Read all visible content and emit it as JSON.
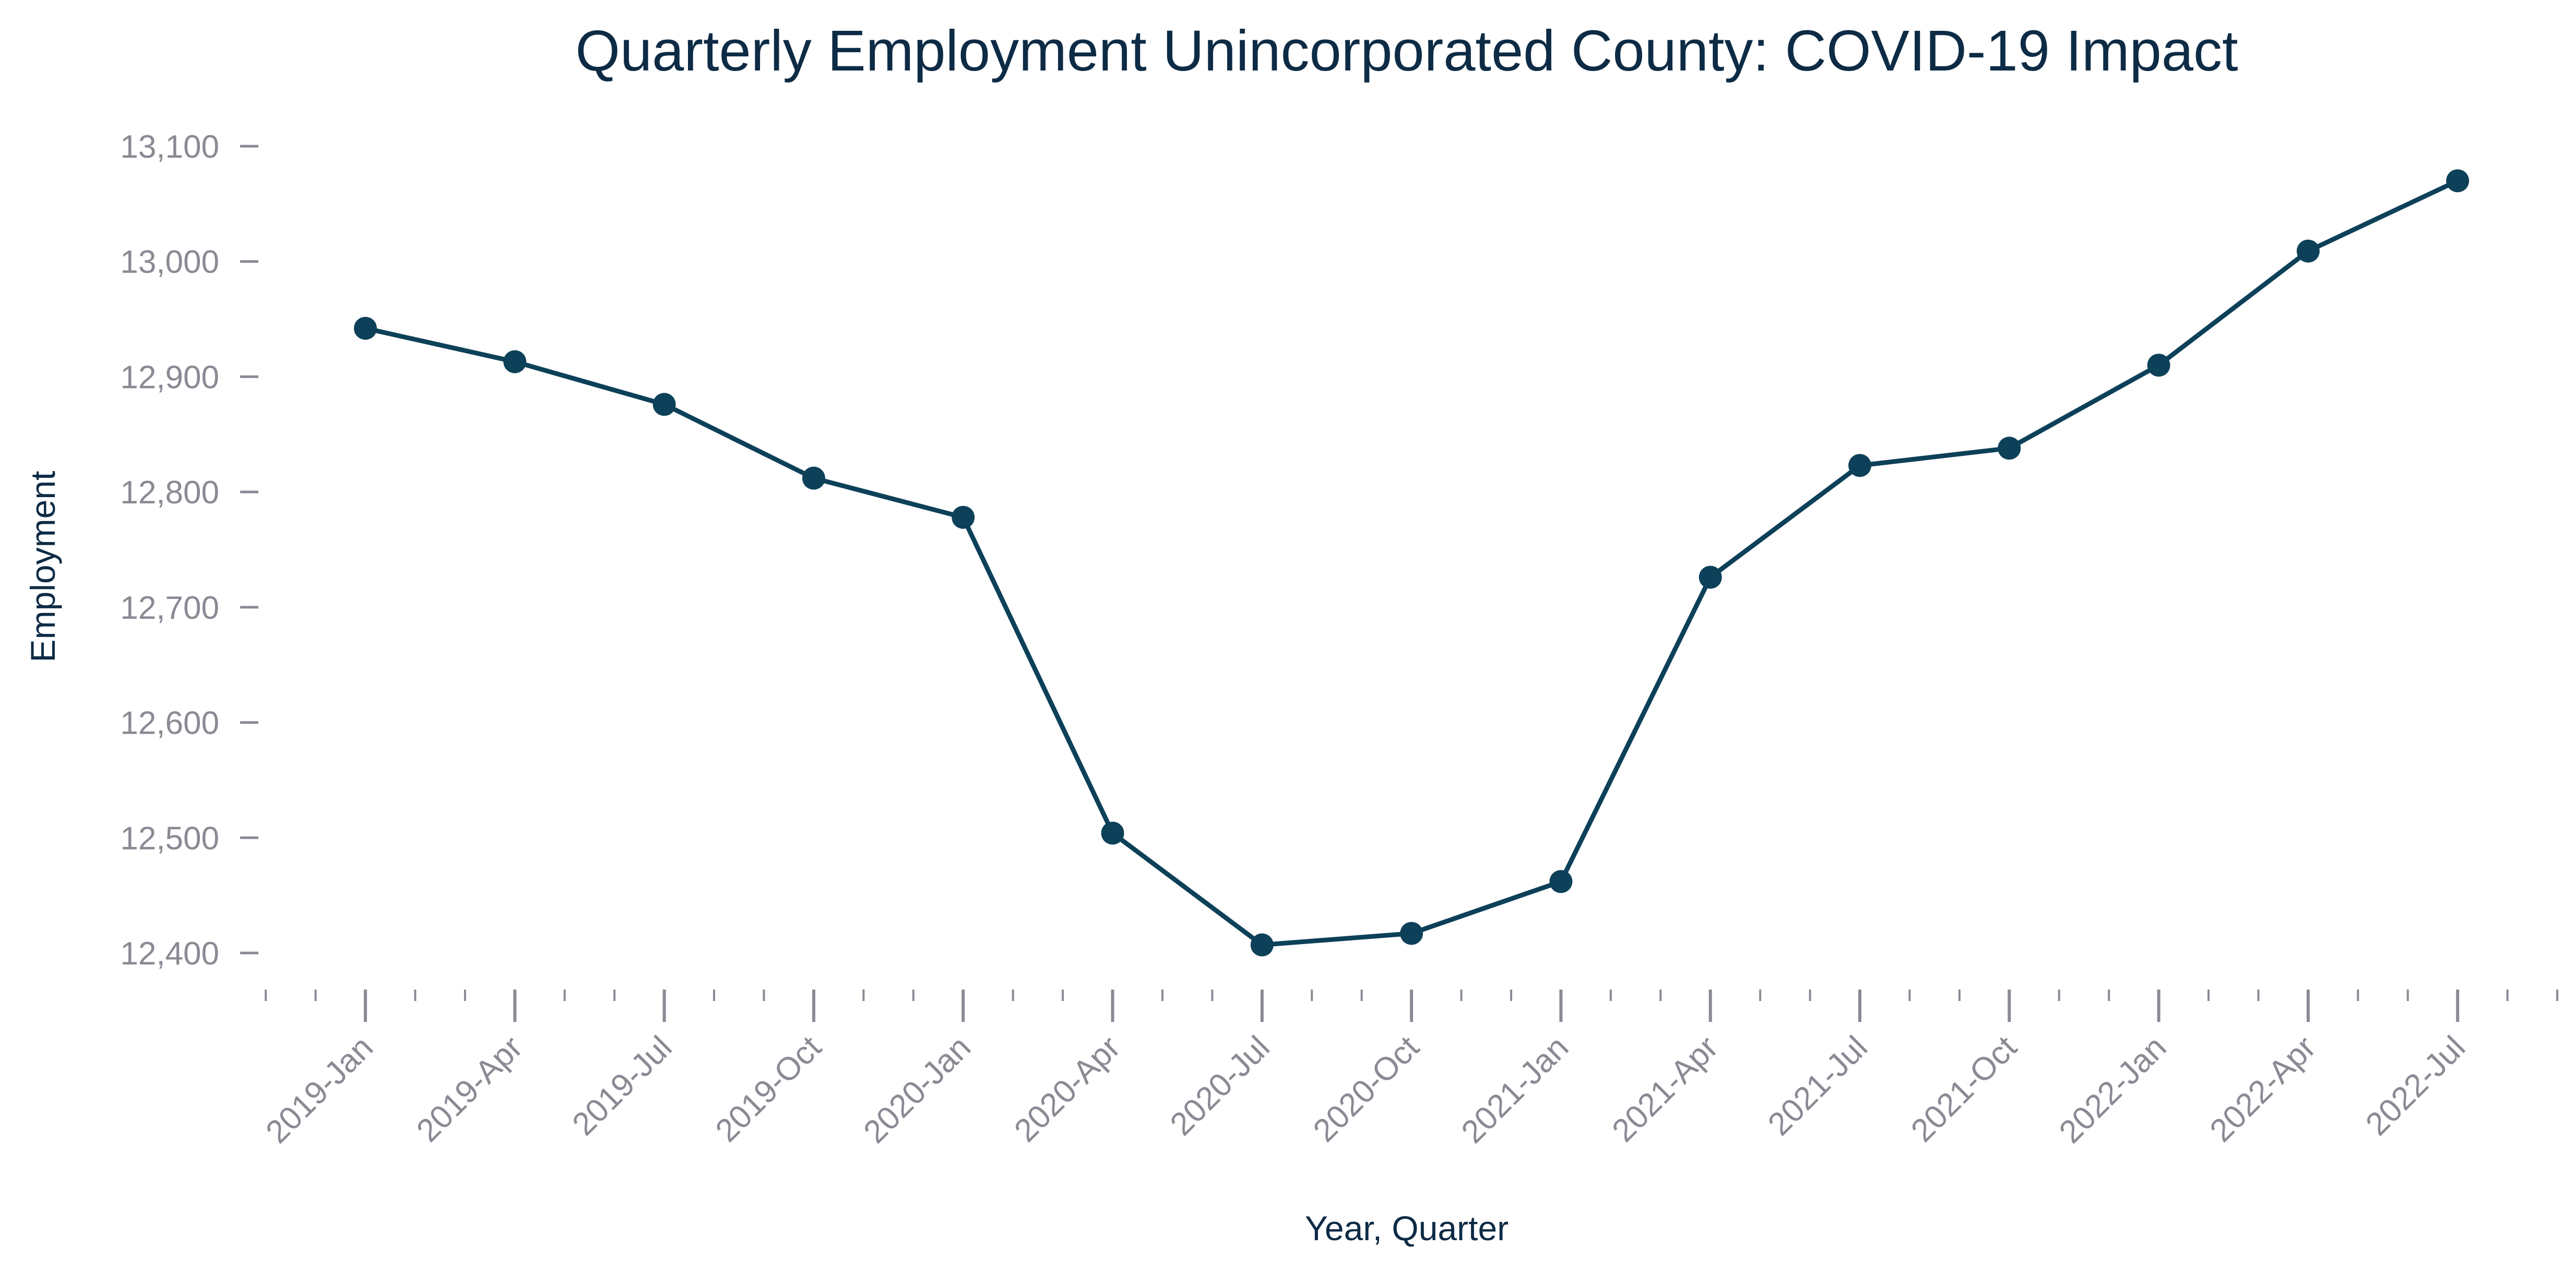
{
  "chart_data": {
    "type": "line",
    "title": "Quarterly Employment Unincorporated County: COVID-19 Impact",
    "xlabel": "Year, Quarter",
    "ylabel": "Employment",
    "categories": [
      "2019-Jan",
      "2019-Apr",
      "2019-Jul",
      "2019-Oct",
      "2020-Jan",
      "2020-Apr",
      "2020-Jul",
      "2020-Oct",
      "2021-Jan",
      "2021-Apr",
      "2021-Jul",
      "2021-Oct",
      "2022-Jan",
      "2022-Apr",
      "2022-Jul"
    ],
    "y_ticks": [
      12400,
      12500,
      12600,
      12700,
      12800,
      12900,
      13000,
      13100
    ],
    "y_tick_labels": [
      "12,400",
      "12,500",
      "12,600",
      "12,700",
      "12,800",
      "12,900",
      "13,000",
      "13,100"
    ],
    "ylim": [
      12385,
      13120
    ],
    "grid": false,
    "series": [
      {
        "values": [
          12942,
          12913,
          12876,
          12812,
          12778,
          12504,
          12407,
          12417,
          12462,
          12726,
          12823,
          12838,
          12910,
          13009,
          13070
        ]
      }
    ],
    "colors": {
      "line": "#0d4059",
      "axis": "#8a8a94",
      "title": "#0d2b45"
    }
  }
}
